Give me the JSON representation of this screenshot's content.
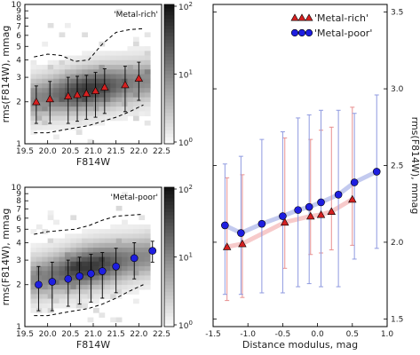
{
  "chart_data": [
    {
      "type": "heatmap",
      "panel": "top-left",
      "tag": "'Metal-rich'",
      "xlabel": "F814W",
      "ylabel": "rms(F814W), mmag",
      "xlim": [
        19.5,
        22.5
      ],
      "ylim": [
        1,
        10
      ],
      "xticks": [
        "19.5",
        "20.0",
        "20.5",
        "21.0",
        "21.5",
        "22.0",
        "22.5"
      ],
      "yticks": [
        "1",
        "2",
        "3",
        "4",
        "5",
        "6",
        "7",
        "8",
        "9",
        "10"
      ],
      "colorbar": {
        "ticks": [
          "10^0",
          "10^1",
          "10^2"
        ],
        "scale": "log"
      },
      "markers": {
        "shape": "triangle",
        "color": "#d62020",
        "x": [
          19.75,
          20.05,
          20.45,
          20.65,
          20.85,
          21.05,
          21.25,
          21.7,
          22.0
        ],
        "y": [
          2.0,
          2.1,
          2.2,
          2.25,
          2.3,
          2.4,
          2.55,
          2.65,
          2.95
        ],
        "err": [
          0.6,
          0.7,
          0.8,
          0.8,
          0.8,
          0.85,
          0.9,
          0.95,
          0.9
        ]
      },
      "dashed_upper": {
        "x": [
          19.7,
          20.0,
          20.3,
          20.6,
          20.9,
          21.2,
          21.5,
          21.8,
          22.1
        ],
        "y": [
          4.2,
          4.4,
          4.3,
          3.9,
          4.0,
          5.2,
          6.3,
          6.6,
          6.7
        ]
      },
      "dashed_lower": {
        "x": [
          19.7,
          20.0,
          20.3,
          20.6,
          20.9,
          21.2,
          21.5,
          21.8,
          22.1
        ],
        "y": [
          1.2,
          1.2,
          1.25,
          1.3,
          1.35,
          1.45,
          1.55,
          1.7,
          1.9
        ]
      }
    },
    {
      "type": "heatmap",
      "panel": "bottom-left",
      "tag": "'Metal-poor'",
      "xlabel": "F814W",
      "ylabel": "rms(F814W), mmag",
      "xlim": [
        19.5,
        22.5
      ],
      "ylim": [
        1,
        10
      ],
      "xticks": [
        "19.5",
        "20.0",
        "20.5",
        "21.0",
        "21.5",
        "22.0",
        "22.5"
      ],
      "yticks": [
        "1",
        "2",
        "3",
        "4",
        "5",
        "6",
        "7",
        "8",
        "9",
        "10"
      ],
      "colorbar": {
        "ticks": [
          "10^0",
          "10^1",
          "10^2"
        ],
        "scale": "log"
      },
      "markers": {
        "shape": "circle",
        "color": "#1e1ee0",
        "x": [
          19.8,
          20.1,
          20.45,
          20.7,
          20.95,
          21.2,
          21.5,
          21.9,
          22.3
        ],
        "y": [
          2.0,
          2.1,
          2.2,
          2.3,
          2.4,
          2.5,
          2.7,
          3.1,
          3.5
        ],
        "err": [
          0.7,
          0.8,
          0.8,
          0.85,
          0.9,
          0.9,
          0.95,
          0.9,
          0.6
        ]
      },
      "dashed_upper": {
        "x": [
          19.7,
          20.0,
          20.3,
          20.6,
          20.9,
          21.2,
          21.5,
          21.8,
          22.1
        ],
        "y": [
          4.6,
          4.8,
          4.9,
          5.0,
          5.3,
          5.8,
          6.2,
          6.3,
          6.4
        ]
      },
      "dashed_lower": {
        "x": [
          19.7,
          20.0,
          20.3,
          20.6,
          20.9,
          21.2,
          21.5,
          21.8,
          22.1
        ],
        "y": [
          1.2,
          1.2,
          1.25,
          1.3,
          1.35,
          1.45,
          1.6,
          1.8,
          2.0
        ]
      }
    },
    {
      "type": "scatter",
      "panel": "right",
      "xlabel": "Distance modulus, mag",
      "ylabel": "rms(F814W), mmag",
      "xlim": [
        -1.5,
        1.0
      ],
      "ylim": [
        1.45,
        3.55
      ],
      "xticks": [
        "-1.5",
        "-1.0",
        "-0.5",
        "0.0",
        "0.5",
        "1.0"
      ],
      "yticks": [
        "1.5",
        "2.0",
        "2.5",
        "3.0",
        "3.5"
      ],
      "legend": "top-right",
      "series": [
        {
          "name": "'Metal-rich'",
          "marker": "triangle",
          "color": "#d62020",
          "x": [
            -1.3,
            -1.08,
            -0.47,
            -0.1,
            0.05,
            0.2,
            0.5
          ],
          "y": [
            1.97,
            1.99,
            2.13,
            2.17,
            2.18,
            2.2,
            2.28
          ],
          "err_lo": [
            0.35,
            0.35,
            0.3,
            0.25,
            0.25,
            0.25,
            0.3
          ],
          "err_hi": [
            0.45,
            0.45,
            0.55,
            0.5,
            0.55,
            0.55,
            0.6
          ]
        },
        {
          "name": "'Metal-poor'",
          "marker": "circle",
          "color": "#1e1ee0",
          "x": [
            -1.33,
            -1.1,
            -0.8,
            -0.5,
            -0.28,
            -0.12,
            0.05,
            0.3,
            0.53,
            0.85
          ],
          "y": [
            2.11,
            2.06,
            2.12,
            2.17,
            2.21,
            2.23,
            2.26,
            2.31,
            2.39,
            2.46
          ],
          "err_lo": [
            0.45,
            0.4,
            0.45,
            0.5,
            0.5,
            0.5,
            0.55,
            0.6,
            0.5,
            0.5
          ],
          "err_hi": [
            0.4,
            0.5,
            0.55,
            0.55,
            0.6,
            0.6,
            0.6,
            0.55,
            0.45,
            0.5
          ]
        }
      ]
    }
  ]
}
